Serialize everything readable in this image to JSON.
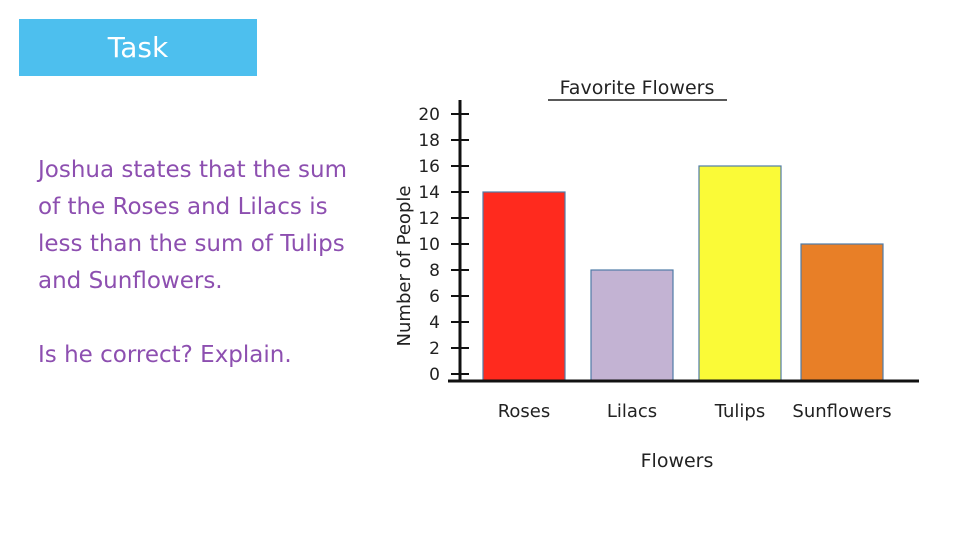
{
  "banner": {
    "title": "Task",
    "color": "#4dbfee"
  },
  "prompt": {
    "statement": "Joshua states that the sum of the Roses and Lilacs is less than the sum of Tulips and Sunflowers.",
    "question": "Is he correct? Explain.",
    "color": "#8d4fb0"
  },
  "chart_data": {
    "type": "bar",
    "title": "Favorite Flowers",
    "xlabel": "Flowers",
    "ylabel": "Number of People",
    "categories": [
      "Roses",
      "Lilacs",
      "Tulips",
      "Sunflowers"
    ],
    "values": [
      14,
      8,
      16,
      10
    ],
    "colors": [
      "#ff2a1e",
      "#c3b3d3",
      "#fafa37",
      "#e87f27"
    ],
    "ylim": [
      0,
      20
    ],
    "yticks": [
      0,
      2,
      4,
      6,
      8,
      10,
      12,
      14,
      16,
      18,
      20
    ],
    "grid": false,
    "legend": "none"
  }
}
